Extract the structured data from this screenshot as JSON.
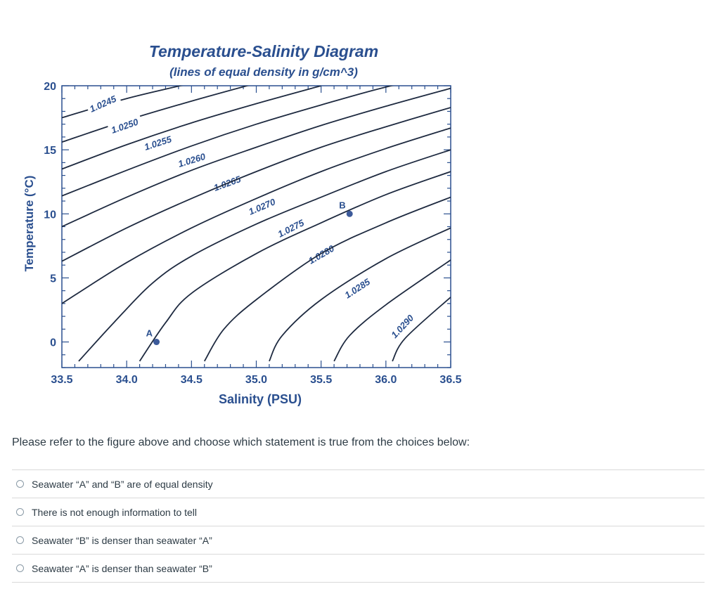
{
  "chart_data": {
    "type": "line",
    "title": "Temperature-Salinity Diagram",
    "subtitle": "(lines of equal density in g/cm^3)",
    "xlabel": "Salinity (PSU)",
    "ylabel": "Temperature (°C)",
    "xlim": [
      33.5,
      36.5
    ],
    "ylim": [
      -2,
      20
    ],
    "xticks": [
      "33.5",
      "34.0",
      "34.5",
      "35.0",
      "35.5",
      "36.0",
      "36.5"
    ],
    "yticks": [
      "0",
      "5",
      "10",
      "15",
      "20"
    ],
    "grid": false,
    "color": "#2a4f8f",
    "isopycnals": [
      {
        "label": "1.0245",
        "points": [
          [
            33.5,
            17.5
          ],
          [
            34.0,
            19.0
          ],
          [
            34.5,
            20.2
          ]
        ]
      },
      {
        "label": "1.0250",
        "points": [
          [
            33.5,
            15.6
          ],
          [
            34.0,
            17.3
          ],
          [
            34.5,
            18.8
          ],
          [
            35.0,
            20.2
          ]
        ]
      },
      {
        "label": "1.0255",
        "points": [
          [
            33.5,
            13.5
          ],
          [
            34.0,
            15.4
          ],
          [
            34.5,
            17.1
          ],
          [
            35.0,
            18.6
          ],
          [
            35.5,
            20.0
          ]
        ]
      },
      {
        "label": "1.0260",
        "points": [
          [
            33.5,
            11.4
          ],
          [
            34.0,
            13.4
          ],
          [
            34.5,
            15.3
          ],
          [
            35.0,
            17.0
          ],
          [
            35.5,
            18.5
          ],
          [
            36.0,
            19.9
          ],
          [
            36.5,
            21.0
          ]
        ]
      },
      {
        "label": "1.0265",
        "points": [
          [
            33.5,
            9.0
          ],
          [
            34.0,
            11.3
          ],
          [
            34.5,
            13.4
          ],
          [
            35.0,
            15.2
          ],
          [
            35.5,
            16.9
          ],
          [
            36.0,
            18.4
          ],
          [
            36.5,
            19.8
          ]
        ]
      },
      {
        "label": "1.0270",
        "points": [
          [
            33.5,
            6.3
          ],
          [
            34.0,
            8.9
          ],
          [
            34.5,
            11.2
          ],
          [
            35.0,
            13.3
          ],
          [
            35.5,
            15.2
          ],
          [
            36.0,
            16.8
          ],
          [
            36.5,
            18.3
          ]
        ]
      },
      {
        "label": "1.0275",
        "points": [
          [
            33.5,
            3.0
          ],
          [
            34.0,
            6.2
          ],
          [
            34.5,
            8.9
          ],
          [
            35.0,
            11.2
          ],
          [
            35.5,
            13.3
          ],
          [
            36.0,
            15.1
          ],
          [
            36.5,
            16.7
          ]
        ]
      },
      {
        "label": "1.0280",
        "points": [
          [
            33.63,
            -1.5
          ],
          [
            33.9,
            1.5
          ],
          [
            34.2,
            4.6
          ],
          [
            34.5,
            6.7
          ],
          [
            35.0,
            9.2
          ],
          [
            35.5,
            11.3
          ],
          [
            36.0,
            13.3
          ],
          [
            36.5,
            15.0
          ]
        ]
      },
      {
        "label": "1.0285",
        "points": [
          [
            34.1,
            -1.5
          ],
          [
            34.3,
            1.5
          ],
          [
            34.5,
            3.8
          ],
          [
            35.0,
            6.9
          ],
          [
            35.5,
            9.3
          ],
          [
            36.0,
            11.5
          ],
          [
            36.5,
            13.3
          ]
        ]
      },
      {
        "label": "1.0290",
        "points": [
          [
            34.6,
            -1.5
          ],
          [
            34.75,
            1.0
          ],
          [
            35.0,
            3.3
          ],
          [
            35.5,
            6.9
          ],
          [
            36.0,
            9.3
          ],
          [
            36.5,
            11.3
          ]
        ]
      },
      {
        "label": "",
        "points": [
          [
            35.1,
            -1.5
          ],
          [
            35.2,
            0.5
          ],
          [
            35.5,
            3.3
          ],
          [
            36.0,
            6.5
          ],
          [
            36.5,
            8.9
          ]
        ]
      },
      {
        "label": "",
        "points": [
          [
            35.6,
            -1.5
          ],
          [
            35.72,
            0.5
          ],
          [
            36.0,
            2.9
          ],
          [
            36.5,
            6.4
          ]
        ]
      },
      {
        "label": "",
        "points": [
          [
            36.05,
            -1.5
          ],
          [
            36.15,
            0.3
          ],
          [
            36.5,
            3.5
          ]
        ]
      }
    ],
    "points": [
      {
        "label": "A",
        "x": 34.23,
        "y": 0.0
      },
      {
        "label": "B",
        "x": 35.72,
        "y": 10.0
      }
    ]
  },
  "question": "Please refer to the figure above and choose which statement is true from the choices below:",
  "answers": [
    "Seawater “A” and “B” are of equal density",
    "There is not enough information to tell",
    "Seawater “B” is denser than seawater “A”",
    "Seawater “A” is denser than seawater “B”"
  ]
}
